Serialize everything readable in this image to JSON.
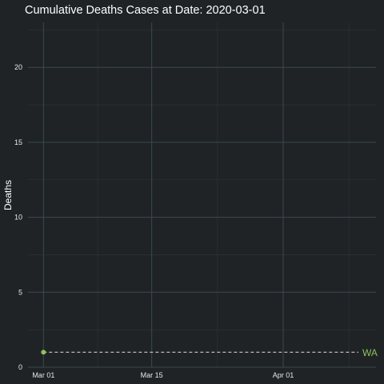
{
  "chart_data": {
    "type": "line",
    "title": "Cumulative Deaths Cases at Date: 2020-03-01",
    "xlabel": "",
    "ylabel": "Deaths",
    "x_type": "date",
    "xlim": [
      "2020-02-28",
      "2020-04-13"
    ],
    "ylim": [
      0,
      23
    ],
    "x_ticks": [
      {
        "date": "2020-03-01",
        "label": "Mar 01"
      },
      {
        "date": "2020-03-15",
        "label": "Mar 15"
      },
      {
        "date": "2020-04-01",
        "label": "Apr 01"
      }
    ],
    "y_ticks": [
      0,
      5,
      10,
      15,
      20
    ],
    "grid": true,
    "legend": "none",
    "series": [
      {
        "name": "WA",
        "color": "#8fc15a",
        "points": [
          {
            "x": "2020-03-01",
            "y": 1
          }
        ],
        "reference_line": {
          "y": 1,
          "style": "dashed",
          "color": "#ffffff"
        }
      }
    ]
  },
  "colors": {
    "background": "#1f2326",
    "grid_major": "#3a4a4b",
    "grid_minor": "#2c3638",
    "text": "#ffffff"
  }
}
